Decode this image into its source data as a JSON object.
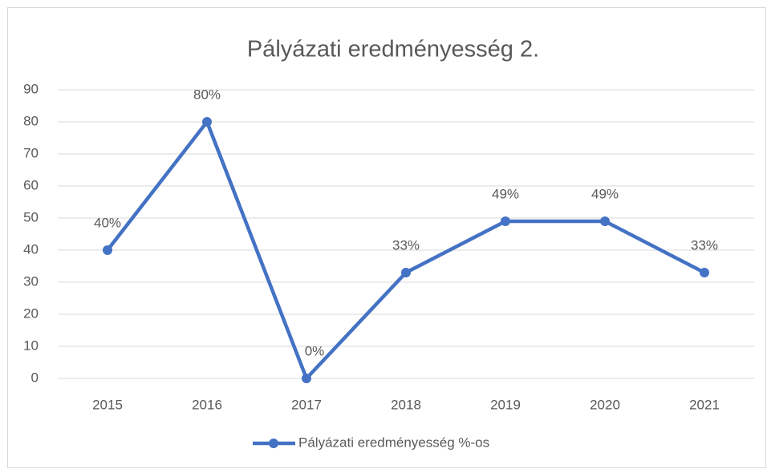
{
  "chart_data": {
    "type": "line",
    "title": "Pályázati eredményesség 2.",
    "categories": [
      "2015",
      "2016",
      "2017",
      "2018",
      "2019",
      "2020",
      "2021"
    ],
    "series": [
      {
        "name": "Pályázati eredményesség %-os",
        "color": "#4472c4",
        "values": [
          40,
          80,
          0,
          33,
          49,
          49,
          33
        ],
        "value_labels": [
          "40%",
          "80%",
          "0%",
          "33%",
          "49%",
          "49%",
          "33%"
        ]
      }
    ],
    "ylim": [
      0,
      90
    ],
    "yticks": [
      0,
      10,
      20,
      30,
      40,
      50,
      60,
      70,
      80,
      90
    ],
    "grid": true,
    "legend": "bottom"
  }
}
